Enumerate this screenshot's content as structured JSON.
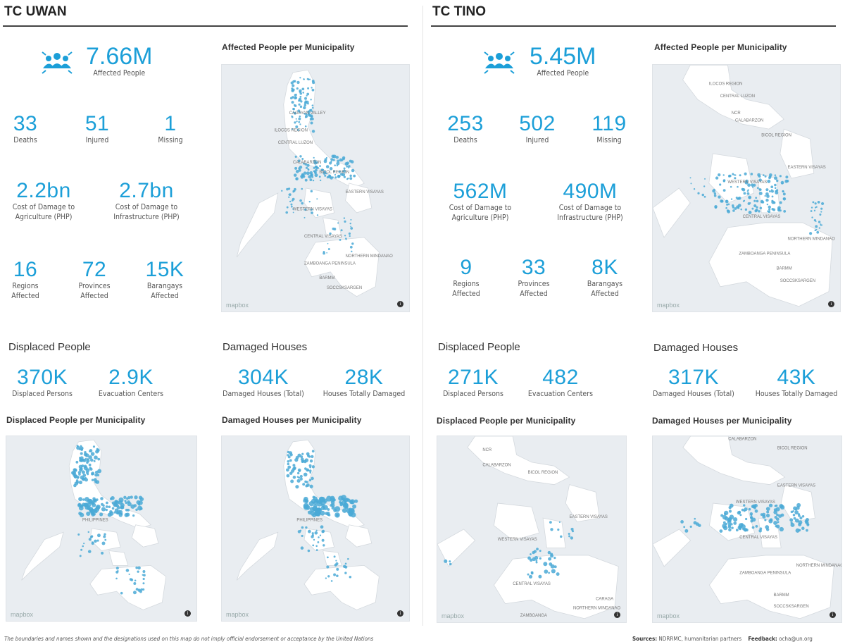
{
  "left": {
    "title": "TC UWAN",
    "affected": {
      "value": "7.66M",
      "label": "Affected People"
    },
    "row1": [
      {
        "value": "33",
        "label": "Deaths"
      },
      {
        "value": "51",
        "label": "Injured"
      },
      {
        "value": "1",
        "label": "Missing"
      }
    ],
    "row2": [
      {
        "value": "2.2bn",
        "label1": "Cost of Damage to",
        "label2": "Agriculture (PHP)"
      },
      {
        "value": "2.7bn",
        "label1": "Cost of Damage to",
        "label2": "Infrastructure (PHP)"
      }
    ],
    "row3": [
      {
        "value": "16",
        "label1": "Regions",
        "label2": "Affected"
      },
      {
        "value": "72",
        "label1": "Provinces",
        "label2": "Affected"
      },
      {
        "value": "15K",
        "label1": "Barangays",
        "label2": "Affected"
      }
    ],
    "displaced": {
      "heading": "Displaced People",
      "items": [
        {
          "value": "370K",
          "label": "Displaced Persons"
        },
        {
          "value": "2.9K",
          "label": "Evacuation Centers"
        }
      ]
    },
    "damaged": {
      "heading": "Damaged Houses",
      "items": [
        {
          "value": "304K",
          "label": "Damaged Houses (Total)"
        },
        {
          "value": "28K",
          "label": "Houses Totally Damaged"
        }
      ]
    },
    "map_affected_title": "Affected People per Municipality",
    "map_displaced_title": "Displaced People per Municipality",
    "map_damaged_title": "Damaged Houses per Municipality",
    "map_regions": [
      "CAGAYAN VALLEY",
      "ILOCOS REGION",
      "CENTRAL LUZON",
      "CALABARZON",
      "BICOL REGION",
      "EASTERN VISAYAS",
      "WESTERN VISAYAS",
      "CENTRAL VISAYAS",
      "NORTHERN MINDANAO",
      "ZAMBOANGA PENINSULA",
      "BARMM",
      "SOCCSKSARGEN"
    ],
    "map_small_label": "PHILIPPINES"
  },
  "right": {
    "title": "TC TINO",
    "affected": {
      "value": "5.45M",
      "label": "Affected People"
    },
    "row1": [
      {
        "value": "253",
        "label": "Deaths"
      },
      {
        "value": "502",
        "label": "Injured"
      },
      {
        "value": "119",
        "label": "Missing"
      }
    ],
    "row2": [
      {
        "value": "562M",
        "label1": "Cost of Damage to",
        "label2": "Agriculture (PHP)"
      },
      {
        "value": "490M",
        "label1": "Cost of Damage to",
        "label2": "Infrastructure (PHP)"
      }
    ],
    "row3": [
      {
        "value": "9",
        "label1": "Regions",
        "label2": "Affected"
      },
      {
        "value": "33",
        "label1": "Provinces",
        "label2": "Affected"
      },
      {
        "value": "8K",
        "label1": "Barangays",
        "label2": "Affected"
      }
    ],
    "displaced": {
      "heading": "Displaced People",
      "items": [
        {
          "value": "271K",
          "label": "Displaced Persons"
        },
        {
          "value": "482",
          "label": "Evacuation Centers"
        }
      ]
    },
    "damaged": {
      "heading": "Damaged Houses",
      "items": [
        {
          "value": "317K",
          "label": "Damaged Houses (Total)"
        },
        {
          "value": "43K",
          "label": "Houses Totally Damaged"
        }
      ]
    },
    "map_affected_title": "Affected People per Municipality",
    "map_displaced_title": "Displaced People per Municipality",
    "map_damaged_title": "Damaged Houses per Municipality",
    "map_regions_affected": [
      "ILOCOS REGION",
      "CENTRAL LUZON",
      "NCR",
      "CALABARZON",
      "BICOL REGION",
      "EASTERN VISAYAS",
      "WESTERN VISAYAS",
      "CENTRAL VISAYAS",
      "NORTHERN MINDANAO",
      "ZAMBOANGA PENINSULA",
      "BARMM",
      "SOCCSKSARGEN"
    ],
    "map_regions_displaced": [
      "NCR",
      "CALABARZON",
      "BICOL REGION",
      "EASTERN VISAYAS",
      "WESTERN VISAYAS",
      "CENTRAL VISAYAS",
      "CARAGA",
      "NORTHERN MINDANAO",
      "ZAMBOANGA"
    ],
    "map_regions_damaged": [
      "CALABARZON",
      "BICOL REGION",
      "EASTERN VISAYAS",
      "WESTERN VISAYAS",
      "CENTRAL VISAYAS",
      "NORTHERN MINDANAO",
      "ZAMBOANGA PENINSULA",
      "BARMM",
      "SOCCSKSARGEN"
    ]
  },
  "mapbox_label": "mapbox",
  "info_glyph": "i",
  "footer": {
    "disclaimer": "The boundaries and names shown and the designations used on this map do not imply official endorsement or acceptance by the United Nations",
    "sources_label": "Sources:",
    "sources_value": "NDRRMC, humanitarian partners",
    "feedback_label": "Feedback:",
    "feedback_value": "ocha@un.org"
  },
  "colors": {
    "accent": "#1c9fd8",
    "dot": "#4aa9d6",
    "map_bg": "#e9edf1",
    "land": "#ffffff"
  }
}
